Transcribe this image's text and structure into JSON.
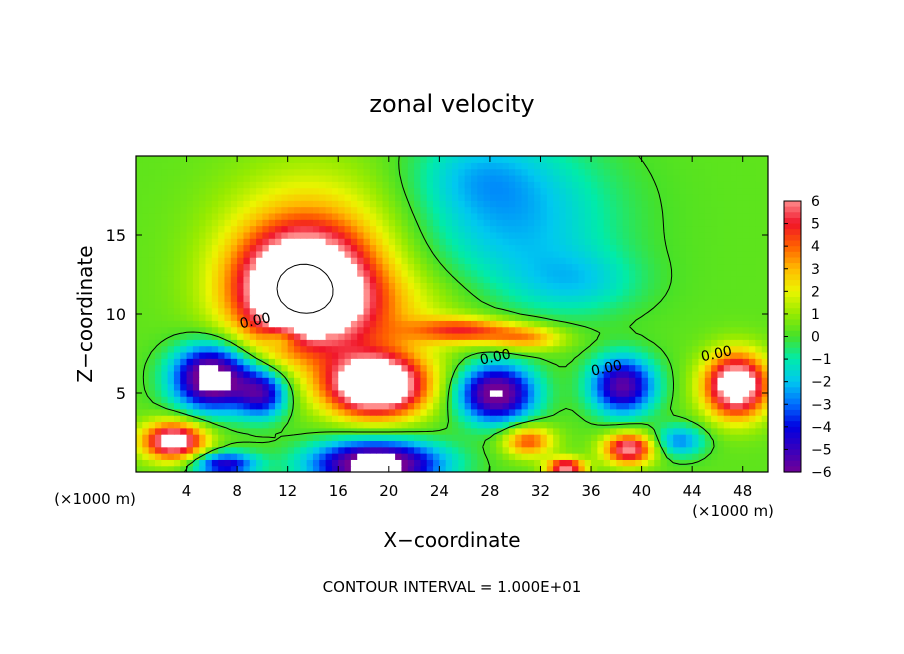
{
  "chart_data": {
    "type": "heatmap",
    "title": "zonal velocity",
    "xlabel": "X−coordinate",
    "ylabel": "Z−coordinate",
    "x_unit_left": "(×1000 m)",
    "x_unit_right": "(×1000 m)",
    "footer": "CONTOUR INTERVAL = 1.000E+01",
    "xlim": [
      0,
      50
    ],
    "ylim": [
      0,
      20
    ],
    "x_ticks": [
      4,
      8,
      12,
      16,
      20,
      24,
      28,
      32,
      36,
      40,
      44,
      48
    ],
    "x_tick_labels": [
      "4",
      "8",
      "12",
      "16",
      "20",
      "24",
      "28",
      "32",
      "36",
      "40",
      "44",
      "48"
    ],
    "y_ticks": [
      5,
      10,
      15
    ],
    "y_tick_labels": [
      "5",
      "10",
      "15"
    ],
    "colorbar": {
      "min": -6,
      "max": 6,
      "ticks": [
        6,
        5,
        4,
        3,
        2,
        1,
        0,
        -1,
        -2,
        -3,
        -4,
        -5,
        -6
      ],
      "tick_labels": [
        "6",
        "5",
        "4",
        "3",
        "2",
        "1",
        "0",
        "−1",
        "−2",
        "−3",
        "−4",
        "−5",
        "−6"
      ]
    },
    "contour_labels": [
      {
        "text": "0.00",
        "x": 9.5,
        "z": 9.3
      },
      {
        "text": "0.00",
        "x": 28.5,
        "z": 7.0
      },
      {
        "text": "0.00",
        "x": 37.3,
        "z": 6.3
      },
      {
        "text": "0.00",
        "x": 46.0,
        "z": 7.2
      }
    ],
    "features": [
      {
        "x": 13,
        "z": 11.5,
        "sx": 5,
        "sz": 3.5,
        "v": 8
      },
      {
        "x": 14,
        "z": 14,
        "sx": 7,
        "sz": 5,
        "v": 3
      },
      {
        "x": 18,
        "z": 10,
        "sx": 8,
        "sz": 3,
        "v": 2
      },
      {
        "x": 30,
        "z": 16,
        "sx": 8,
        "sz": 5,
        "v": -2.5
      },
      {
        "x": 27,
        "z": 19,
        "sx": 5,
        "sz": 2.5,
        "v": -1.2
      },
      {
        "x": 35,
        "z": 12,
        "sx": 5,
        "sz": 2,
        "v": -1.5
      },
      {
        "x": 6,
        "z": 6,
        "sx": 3,
        "sz": 2,
        "v": -8
      },
      {
        "x": 10,
        "z": 5,
        "sx": 2,
        "sz": 1.5,
        "v": -5
      },
      {
        "x": 19,
        "z": 5.5,
        "sx": 4,
        "sz": 2,
        "v": 9
      },
      {
        "x": 28.5,
        "z": 5,
        "sx": 3,
        "sz": 1.8,
        "v": -7
      },
      {
        "x": 38.5,
        "z": 5.5,
        "sx": 2.5,
        "sz": 1.8,
        "v": -6
      },
      {
        "x": 47.5,
        "z": 5.5,
        "sx": 2.5,
        "sz": 2,
        "v": 8
      },
      {
        "x": 3,
        "z": 2,
        "sx": 2.5,
        "sz": 1.2,
        "v": 7
      },
      {
        "x": 19,
        "z": 0.5,
        "sx": 5,
        "sz": 1.5,
        "v": -8
      },
      {
        "x": 7,
        "z": 0.5,
        "sx": 2.5,
        "sz": 0.8,
        "v": -5
      },
      {
        "x": 31,
        "z": 2,
        "sx": 2,
        "sz": 1,
        "v": 4
      },
      {
        "x": 39,
        "z": 1.5,
        "sx": 2,
        "sz": 1,
        "v": 6
      },
      {
        "x": 26,
        "z": 9,
        "sx": 4,
        "sz": 0.8,
        "v": 4
      },
      {
        "x": 31,
        "z": 8.5,
        "sx": 3,
        "sz": 0.8,
        "v": 3
      },
      {
        "x": 43,
        "z": 2,
        "sx": 2,
        "sz": 1,
        "v": -3
      },
      {
        "x": 34,
        "z": 0.3,
        "sx": 1.5,
        "sz": 0.6,
        "v": 6
      },
      {
        "x": 11.5,
        "z": 8.5,
        "sx": 1.5,
        "sz": 0.7,
        "v": -2
      }
    ]
  }
}
